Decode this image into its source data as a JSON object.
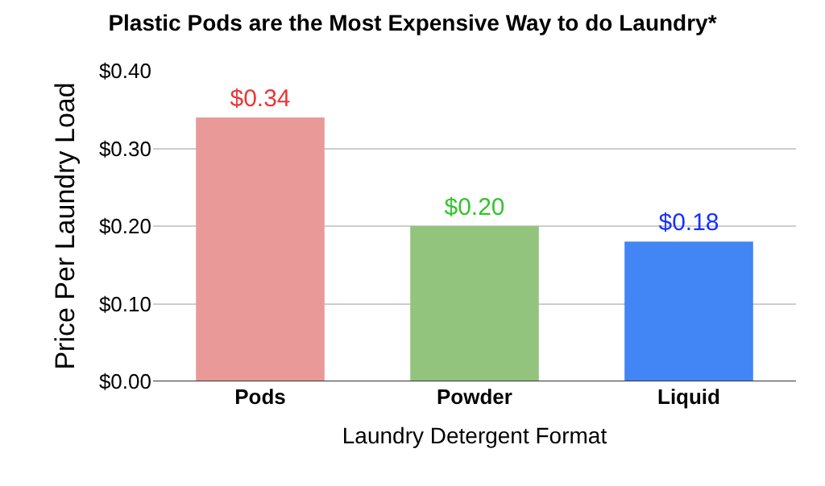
{
  "chart_data": {
    "type": "bar",
    "title": "Plastic Pods are the Most Expensive Way to do Laundry*",
    "xlabel": "Laundry Detergent Format",
    "ylabel": "Price Per Laundry Load",
    "categories": [
      "Pods",
      "Powder",
      "Liquid"
    ],
    "values": [
      0.34,
      0.2,
      0.18
    ],
    "colors": [
      "#ea9999",
      "#93c47d",
      "#4285f4"
    ],
    "value_labels": [
      "$0.34",
      "$0.20",
      "$0.18"
    ],
    "ylim": [
      0,
      0.4
    ],
    "yticks": [
      {
        "value": 0,
        "label": "$0.00"
      },
      {
        "value": 0.1,
        "label": "$0.10"
      },
      {
        "value": 0.2,
        "label": "$0.20"
      },
      {
        "value": 0.3,
        "label": "$0.30"
      },
      {
        "value": 0.4,
        "label": "$0.40"
      }
    ],
    "grid": "y"
  }
}
